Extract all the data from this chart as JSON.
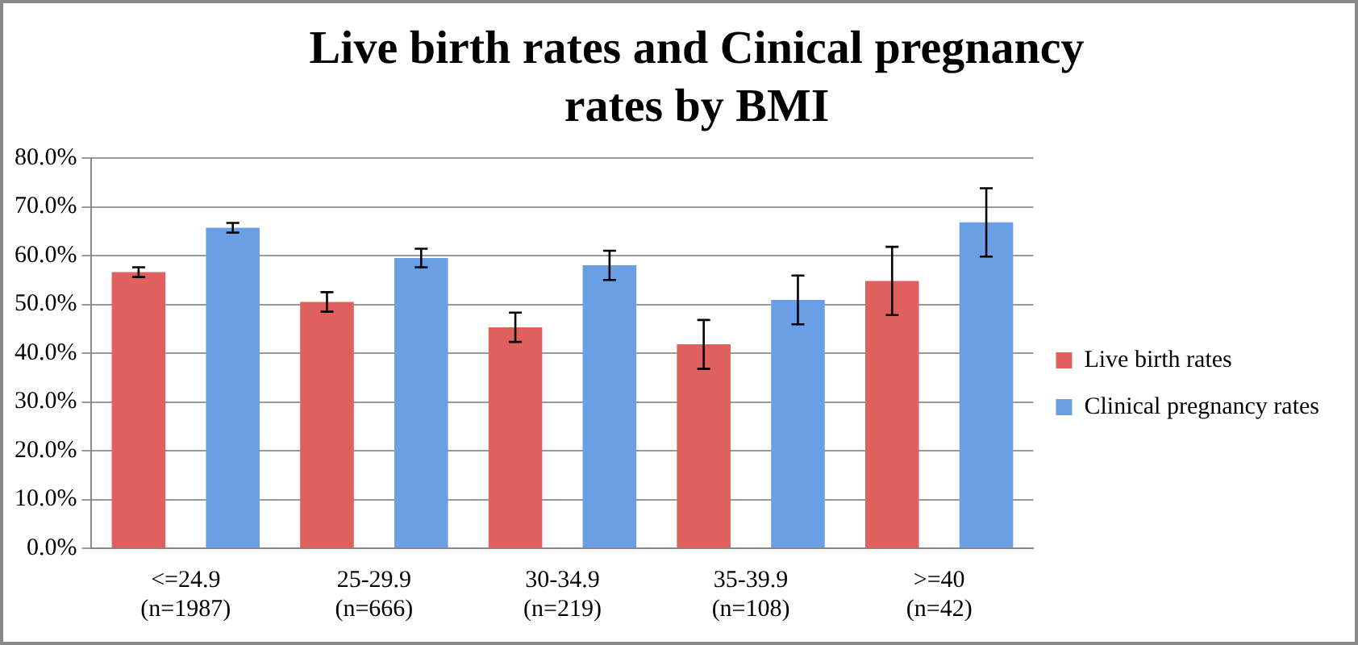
{
  "chart_data": {
    "type": "bar",
    "title": "Live birth rates and Cinical pregnancy rates by BMI",
    "categories": [
      "<=24.9 (n=1987)",
      "25-29.9 (n=666)",
      "30-34.9 (n=219)",
      "35-39.9 (n=108)",
      ">=40 (n=42)"
    ],
    "series": [
      {
        "name": "Live birth rates",
        "color": "#e0605e",
        "values": [
          56.6,
          50.5,
          45.3,
          41.8,
          54.8
        ],
        "errors": [
          1.0,
          2.0,
          3.0,
          5.0,
          7.0
        ]
      },
      {
        "name": "Clinical pregnancy rates",
        "color": "#6a9fe6",
        "values": [
          65.7,
          59.5,
          58.0,
          50.9,
          66.8
        ],
        "errors": [
          1.0,
          1.9,
          3.0,
          5.0,
          7.0
        ]
      }
    ],
    "ylim": [
      0,
      80
    ],
    "yticks": [
      {
        "value": 0,
        "label": "0.0%"
      },
      {
        "value": 10,
        "label": "10.0%"
      },
      {
        "value": 20,
        "label": "20.0%"
      },
      {
        "value": 30,
        "label": "30.0%"
      },
      {
        "value": 40,
        "label": "40.0%"
      },
      {
        "value": 50,
        "label": "50.0%"
      },
      {
        "value": 60,
        "label": "60.0%"
      },
      {
        "value": 70,
        "label": "70.0%"
      },
      {
        "value": 80,
        "label": "80.0%"
      }
    ],
    "grid": "y",
    "legend": "right"
  }
}
